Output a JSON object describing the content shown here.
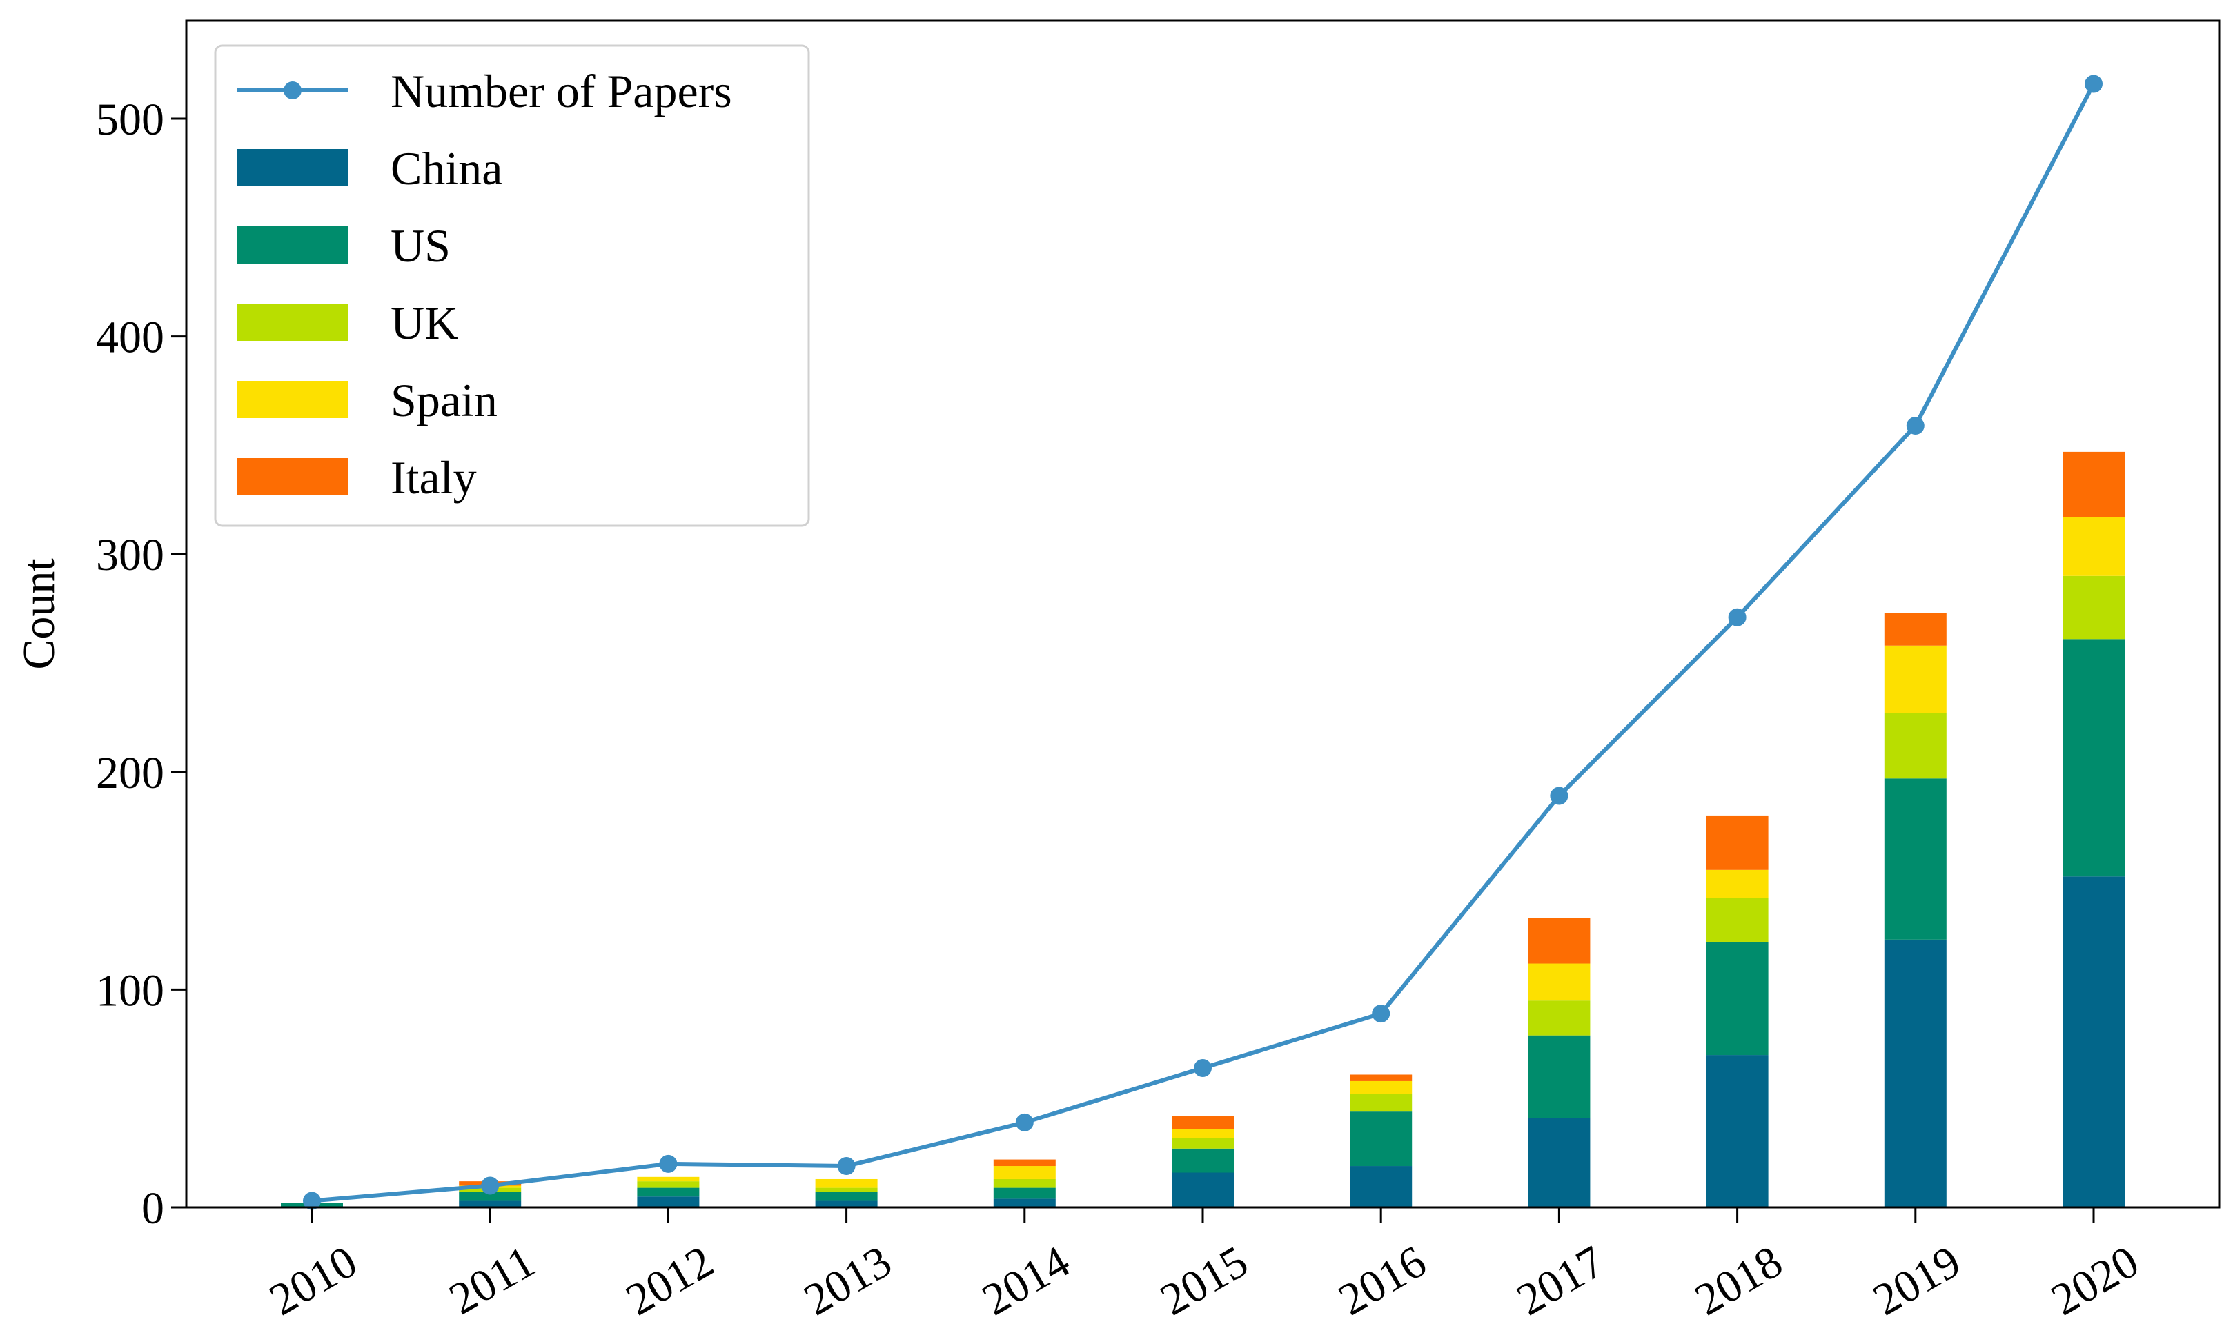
{
  "chart_data": {
    "type": "bar",
    "stacked": true,
    "title": "",
    "xlabel": "",
    "ylabel": "Count",
    "ylim": [
      0,
      545
    ],
    "yticks": [
      0,
      100,
      200,
      300,
      400,
      500
    ],
    "categories": [
      "2010",
      "2011",
      "2012",
      "2013",
      "2014",
      "2015",
      "2016",
      "2017",
      "2018",
      "2019",
      "2020"
    ],
    "series": [
      {
        "name": "China",
        "color": "#02668a",
        "values": [
          0,
          3,
          5,
          3,
          4,
          16,
          19,
          41,
          70,
          123,
          152
        ]
      },
      {
        "name": "US",
        "color": "#008c6c",
        "values": [
          2,
          4,
          4,
          4,
          5,
          11,
          25,
          38,
          52,
          74,
          109
        ]
      },
      {
        "name": "UK",
        "color": "#b9de00",
        "values": [
          0,
          2,
          3,
          2,
          4,
          5,
          8,
          16,
          20,
          30,
          29
        ]
      },
      {
        "name": "Spain",
        "color": "#fde000",
        "values": [
          0,
          1,
          2,
          4,
          6,
          4,
          6,
          17,
          13,
          31,
          27
        ]
      },
      {
        "name": "Italy",
        "color": "#fd6d03",
        "values": [
          0,
          2,
          0,
          0,
          3,
          6,
          3,
          21,
          25,
          15,
          30
        ]
      }
    ],
    "line": {
      "name": "Number of Papers",
      "color": "#3d8fc4",
      "values": [
        3,
        10,
        20,
        19,
        39,
        64,
        89,
        189,
        271,
        359,
        516
      ]
    },
    "legend_position": "top-left"
  }
}
